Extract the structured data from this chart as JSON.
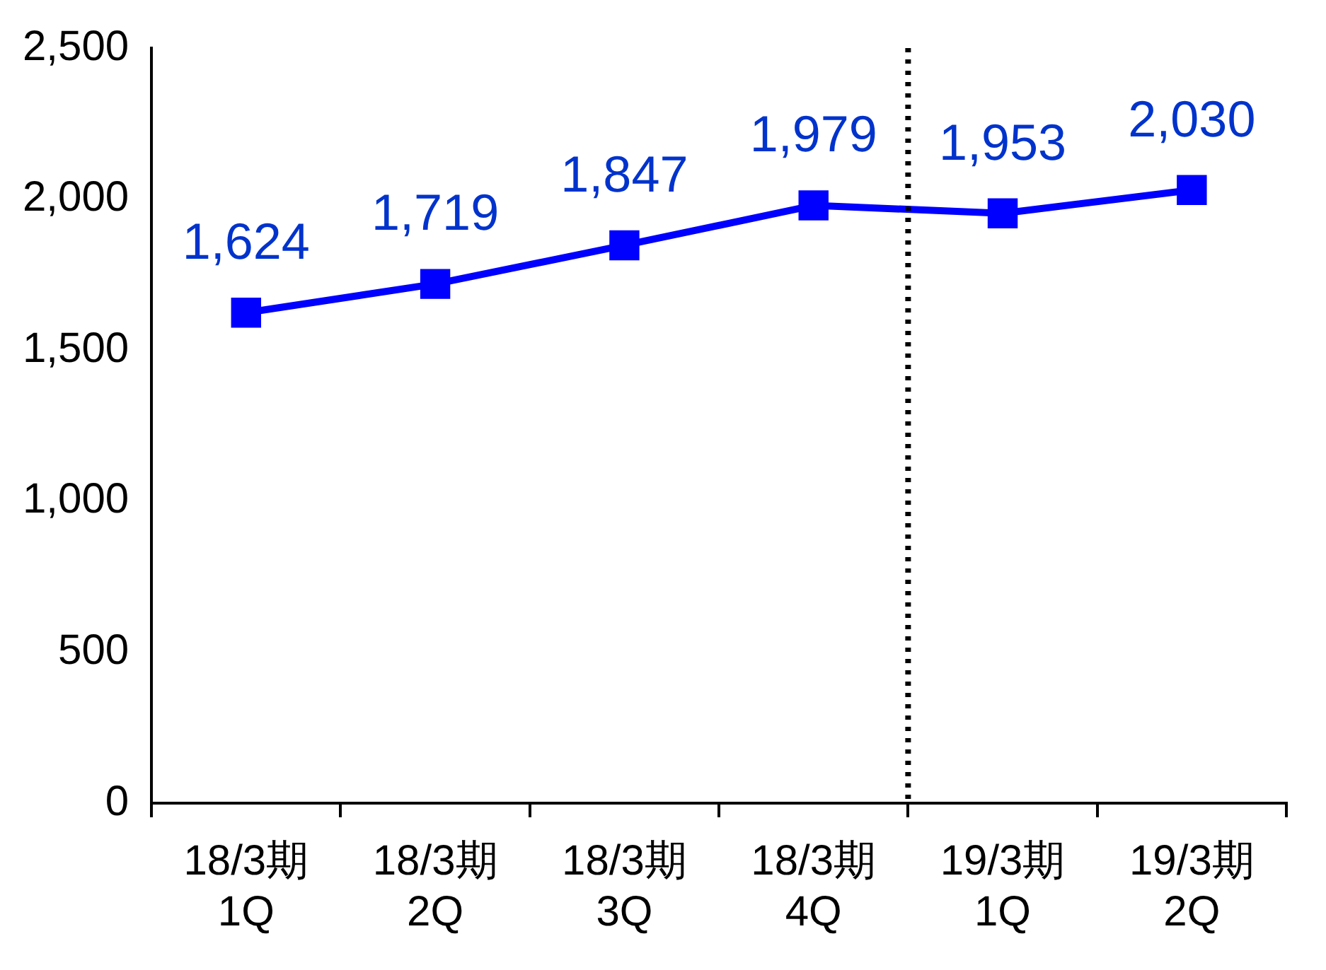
{
  "chart_data": {
    "type": "line",
    "categories": [
      "18/3期\n1Q",
      "18/3期\n2Q",
      "18/3期\n3Q",
      "18/3期\n4Q",
      "19/3期\n1Q",
      "19/3期\n2Q"
    ],
    "series": [
      {
        "color": "#0000ff",
        "values": [
          1624,
          1719,
          1847,
          1979,
          1953,
          2030
        ],
        "value_labels": [
          "1,624",
          "1,719",
          "1,847",
          "1,979",
          "1,953",
          "2,030"
        ]
      }
    ],
    "ylim": [
      0,
      2500
    ],
    "yticks": [
      {
        "value": 0,
        "label": "0"
      },
      {
        "value": 500,
        "label": "500"
      },
      {
        "value": 1000,
        "label": "1,000"
      },
      {
        "value": 1500,
        "label": "1,500"
      },
      {
        "value": 2000,
        "label": "2,000"
      },
      {
        "value": 2500,
        "label": "2,500"
      }
    ],
    "grid": false,
    "legend": false,
    "marker": "square",
    "line_style": "solid"
  }
}
